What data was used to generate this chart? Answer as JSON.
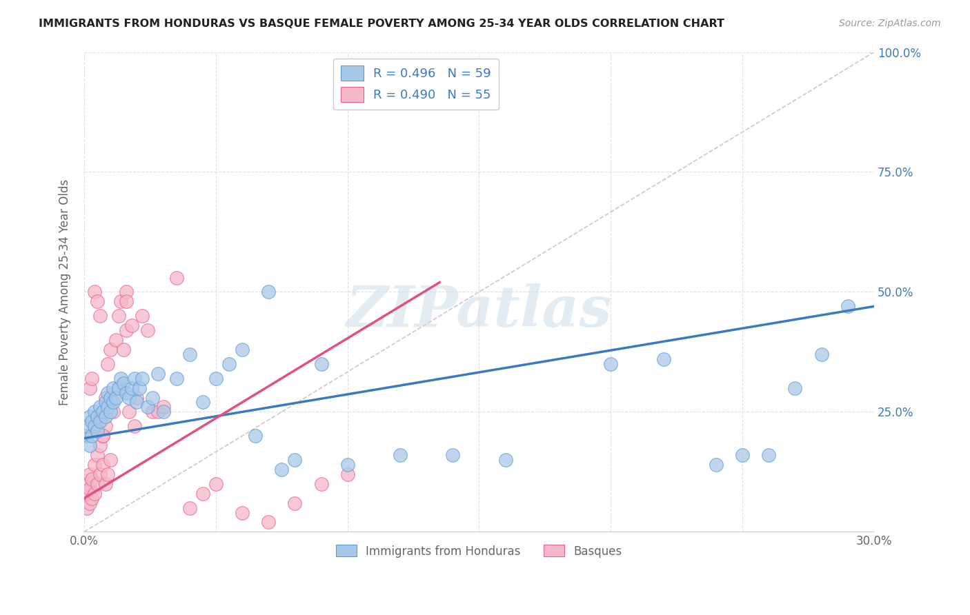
{
  "title": "IMMIGRANTS FROM HONDURAS VS BASQUE FEMALE POVERTY AMONG 25-34 YEAR OLDS CORRELATION CHART",
  "source": "Source: ZipAtlas.com",
  "ylabel": "Female Poverty Among 25-34 Year Olds",
  "xlim": [
    0.0,
    0.3
  ],
  "ylim": [
    0.0,
    1.0
  ],
  "xticks": [
    0.0,
    0.05,
    0.1,
    0.15,
    0.2,
    0.25,
    0.3
  ],
  "yticks": [
    0.0,
    0.25,
    0.5,
    0.75,
    1.0
  ],
  "right_ytick_labels": [
    "",
    "25.0%",
    "50.0%",
    "75.0%",
    "100.0%"
  ],
  "xtick_labels": [
    "0.0%",
    "",
    "",
    "",
    "",
    "",
    "30.0%"
  ],
  "legend_label1": "R = 0.496   N = 59",
  "legend_label2": "R = 0.490   N = 55",
  "legend_series1": "Immigrants from Honduras",
  "legend_series2": "Basques",
  "color_blue": "#a8c8e8",
  "color_pink": "#f4b8c8",
  "color_blue_edge": "#5b9bd5",
  "color_pink_edge": "#e86090",
  "color_blue_line": "#3a7bbf",
  "color_pink_line": "#e05080",
  "color_diag": "#c8c8c8",
  "watermark": "ZIPatlas",
  "blue_scatter_x": [
    0.001,
    0.001,
    0.002,
    0.002,
    0.003,
    0.003,
    0.004,
    0.004,
    0.005,
    0.005,
    0.006,
    0.006,
    0.007,
    0.008,
    0.008,
    0.009,
    0.009,
    0.01,
    0.01,
    0.011,
    0.011,
    0.012,
    0.013,
    0.014,
    0.015,
    0.016,
    0.017,
    0.018,
    0.019,
    0.02,
    0.021,
    0.022,
    0.024,
    0.026,
    0.028,
    0.03,
    0.035,
    0.04,
    0.045,
    0.05,
    0.055,
    0.06,
    0.065,
    0.07,
    0.075,
    0.08,
    0.09,
    0.1,
    0.12,
    0.14,
    0.16,
    0.2,
    0.22,
    0.24,
    0.25,
    0.26,
    0.27,
    0.28,
    0.29
  ],
  "blue_scatter_y": [
    0.2,
    0.22,
    0.18,
    0.24,
    0.2,
    0.23,
    0.22,
    0.25,
    0.21,
    0.24,
    0.23,
    0.26,
    0.25,
    0.27,
    0.24,
    0.26,
    0.29,
    0.25,
    0.28,
    0.27,
    0.3,
    0.28,
    0.3,
    0.32,
    0.31,
    0.29,
    0.28,
    0.3,
    0.32,
    0.27,
    0.3,
    0.32,
    0.26,
    0.28,
    0.33,
    0.25,
    0.32,
    0.37,
    0.27,
    0.32,
    0.35,
    0.38,
    0.2,
    0.5,
    0.13,
    0.15,
    0.35,
    0.14,
    0.16,
    0.16,
    0.15,
    0.35,
    0.36,
    0.14,
    0.16,
    0.16,
    0.3,
    0.37,
    0.47
  ],
  "pink_scatter_x": [
    0.001,
    0.001,
    0.001,
    0.002,
    0.002,
    0.002,
    0.003,
    0.003,
    0.004,
    0.004,
    0.005,
    0.005,
    0.006,
    0.006,
    0.007,
    0.007,
    0.008,
    0.008,
    0.009,
    0.01,
    0.01,
    0.011,
    0.012,
    0.013,
    0.014,
    0.015,
    0.016,
    0.016,
    0.017,
    0.018,
    0.019,
    0.02,
    0.022,
    0.024,
    0.026,
    0.028,
    0.03,
    0.035,
    0.04,
    0.045,
    0.05,
    0.06,
    0.07,
    0.08,
    0.09,
    0.1,
    0.002,
    0.003,
    0.004,
    0.005,
    0.006,
    0.007,
    0.008,
    0.009,
    0.016
  ],
  "pink_scatter_y": [
    0.05,
    0.08,
    0.1,
    0.06,
    0.09,
    0.12,
    0.07,
    0.11,
    0.08,
    0.14,
    0.1,
    0.16,
    0.12,
    0.18,
    0.14,
    0.2,
    0.22,
    0.28,
    0.35,
    0.15,
    0.38,
    0.25,
    0.4,
    0.45,
    0.48,
    0.38,
    0.42,
    0.5,
    0.25,
    0.43,
    0.22,
    0.28,
    0.45,
    0.42,
    0.25,
    0.25,
    0.26,
    0.53,
    0.05,
    0.08,
    0.1,
    0.04,
    0.02,
    0.06,
    0.1,
    0.12,
    0.3,
    0.32,
    0.5,
    0.48,
    0.45,
    0.2,
    0.1,
    0.12,
    0.48
  ],
  "blue_line_x": [
    0.0,
    0.3
  ],
  "blue_line_y": [
    0.195,
    0.47
  ],
  "pink_line_x": [
    0.0,
    0.135
  ],
  "pink_line_y": [
    0.07,
    0.52
  ]
}
